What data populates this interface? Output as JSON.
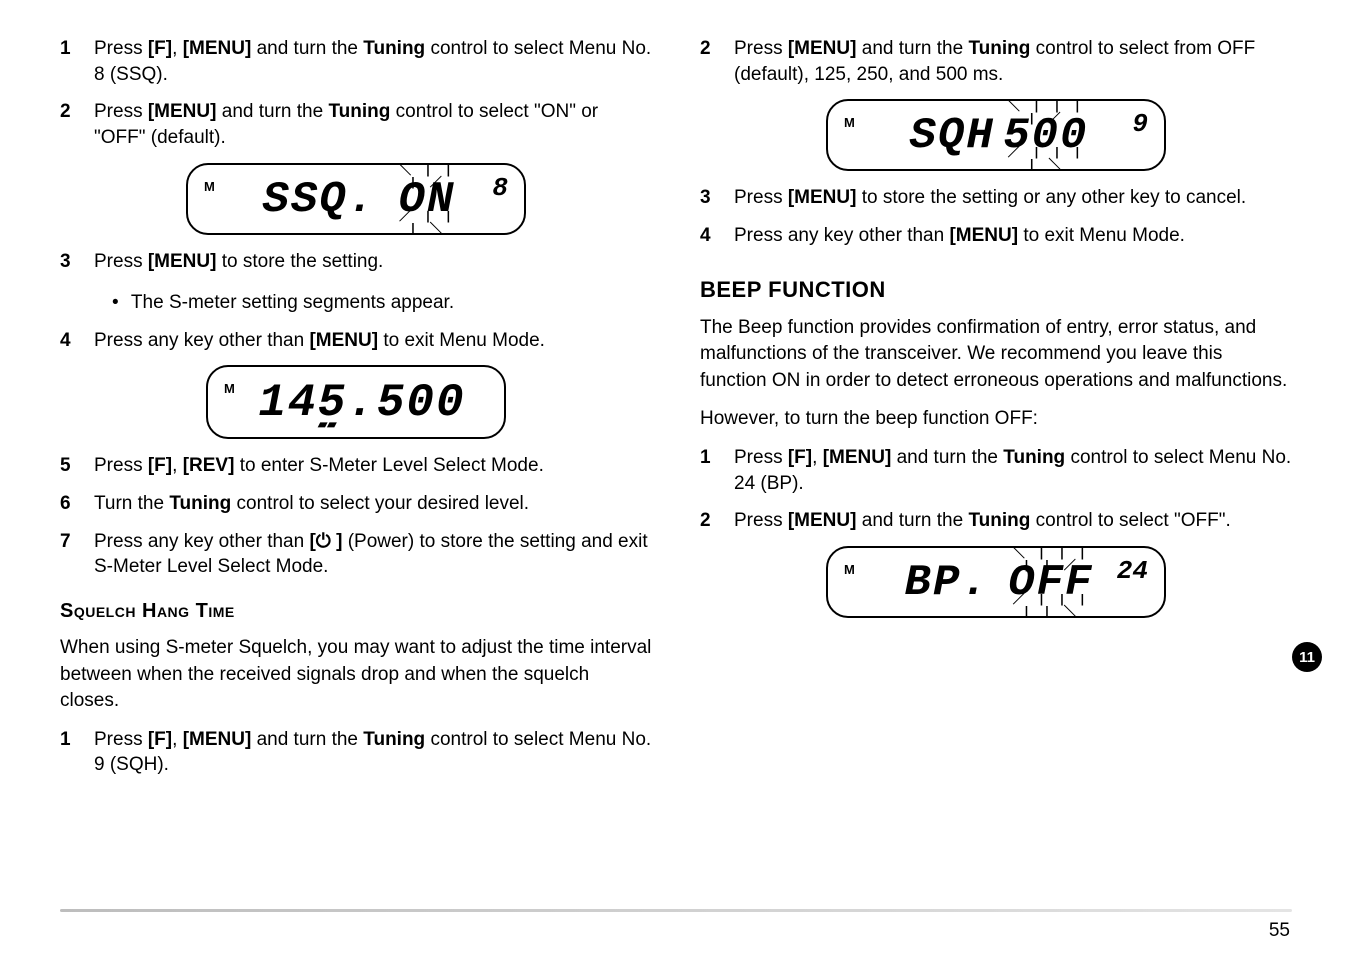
{
  "page_number": "55",
  "side_tab": "11",
  "left": {
    "steps_a": [
      {
        "n": "1",
        "parts": [
          "Press ",
          "[F]",
          ", ",
          "[MENU]",
          " and turn the ",
          "Tuning",
          " control to select Menu No. 8 (SSQ)."
        ]
      },
      {
        "n": "2",
        "parts": [
          "Press ",
          "[MENU]",
          " and turn the ",
          "Tuning",
          " control to select \"ON\" or \"OFF\" (default)."
        ]
      }
    ],
    "lcd1": {
      "m": "M",
      "left": "SSQ.",
      "blink": "ON",
      "menu": "8"
    },
    "steps_b": [
      {
        "n": "3",
        "parts": [
          "Press ",
          "[MENU]",
          " to store the setting."
        ],
        "sub": "The S-meter setting segments appear."
      },
      {
        "n": "4",
        "parts": [
          "Press any key other than ",
          "[MENU]",
          " to exit Menu Mode."
        ]
      }
    ],
    "lcd2": {
      "m": "M",
      "main": "145.500",
      "ant": true
    },
    "steps_c": [
      {
        "n": "5",
        "parts": [
          "Press ",
          "[F]",
          ", ",
          "[REV]",
          " to enter S-Meter Level Select Mode."
        ]
      },
      {
        "n": "6",
        "parts": [
          "Turn the ",
          "Tuning",
          " control to select your desired level."
        ]
      },
      {
        "n": "7",
        "parts": [
          "Press any key other than ",
          "[",
          "⏻",
          " ]",
          " (Power) to store the setting and exit S-Meter Level Select Mode."
        ]
      }
    ],
    "sqh_heading": "Squelch Hang Time",
    "sqh_para": "When using S-meter Squelch, you may want to adjust the time interval between when the received signals drop and when the squelch closes.",
    "steps_d": [
      {
        "n": "1",
        "parts": [
          "Press ",
          "[F]",
          ", ",
          "[MENU]",
          " and turn the ",
          "Tuning",
          " control to select Menu No. 9 (SQH)."
        ]
      }
    ]
  },
  "right": {
    "steps_a": [
      {
        "n": "2",
        "parts": [
          "Press ",
          "[MENU]",
          " and turn the ",
          "Tuning",
          " control to select from OFF (default), 125, 250, and 500 ms."
        ]
      }
    ],
    "lcd1": {
      "m": "M",
      "left": "SQH",
      "blink": "500",
      "menu": "9"
    },
    "steps_b": [
      {
        "n": "3",
        "parts": [
          "Press ",
          "[MENU]",
          " to store the setting or any other key to cancel."
        ]
      },
      {
        "n": "4",
        "parts": [
          "Press any key other than ",
          "[MENU]",
          " to exit Menu Mode."
        ]
      }
    ],
    "beep_heading": "BEEP FUNCTION",
    "beep_para1": "The Beep function provides confirmation of entry, error status, and malfunctions of the transceiver.  We recommend you leave this function ON in order to detect erroneous operations and malfunctions.",
    "beep_para2": "However, to turn the beep function OFF:",
    "steps_c": [
      {
        "n": "1",
        "parts": [
          "Press ",
          "[F]",
          ", ",
          "[MENU]",
          " and turn the ",
          "Tuning",
          " control to select Menu No. 24 (BP)."
        ]
      },
      {
        "n": "2",
        "parts": [
          "Press ",
          "[MENU]",
          " and turn the ",
          "Tuning",
          " control to select \"OFF\"."
        ]
      }
    ],
    "lcd2": {
      "m": "M",
      "left": "BP.",
      "blink": "OFF",
      "menu": "24"
    }
  },
  "bold_tokens": [
    "[F]",
    "[MENU]",
    "[REV]",
    "Tuning",
    "[",
    " ]"
  ],
  "colors": {
    "text": "#000000",
    "bg": "#ffffff",
    "hr": "#cfcfcf",
    "tab_bg": "#000000",
    "tab_fg": "#ffffff"
  }
}
